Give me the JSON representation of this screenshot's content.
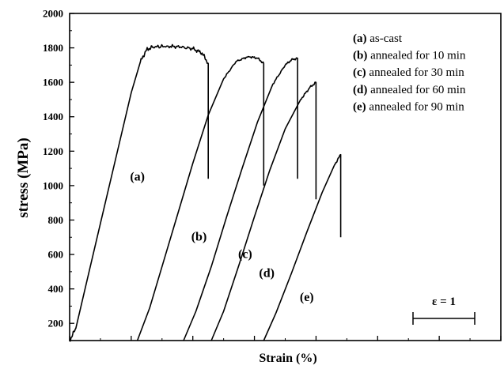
{
  "chart_data": {
    "type": "line",
    "xlabel": "Strain (%)",
    "ylabel": "stress (MPa)",
    "ylim": [
      100,
      2000
    ],
    "xlim": [
      0,
      14
    ],
    "y_ticks": [
      200,
      400,
      600,
      800,
      1000,
      1200,
      1400,
      1600,
      1800,
      2000
    ],
    "x_tick_labels_shown": false,
    "grid": false,
    "legend_position": "top-right",
    "legend": [
      {
        "key": "(a)",
        "text": "as-cast"
      },
      {
        "key": "(b)",
        "text": "annealed for 10 min"
      },
      {
        "key": "(c)",
        "text": "annealed for 30 min"
      },
      {
        "key": "(d)",
        "text": "annealed for 60 min"
      },
      {
        "key": "(e)",
        "text": "annealed for 90 min"
      }
    ],
    "scale_bar": {
      "label": "ε = 1",
      "strain_length": 1
    },
    "series": [
      {
        "name": "(a)",
        "points": [
          [
            0,
            100
          ],
          [
            0.2,
            170
          ],
          [
            0.5,
            400
          ],
          [
            1.0,
            780
          ],
          [
            1.5,
            1160
          ],
          [
            2.0,
            1540
          ],
          [
            2.3,
            1720
          ],
          [
            2.5,
            1790
          ],
          [
            2.7,
            1805
          ],
          [
            3.2,
            1810
          ],
          [
            3.6,
            1805
          ],
          [
            4.0,
            1795
          ],
          [
            4.3,
            1770
          ],
          [
            4.5,
            1710
          ],
          [
            4.5,
            1040
          ]
        ]
      },
      {
        "name": "(b)",
        "points": [
          [
            2.2,
            100
          ],
          [
            2.6,
            290
          ],
          [
            3.0,
            530
          ],
          [
            3.5,
            830
          ],
          [
            4.0,
            1130
          ],
          [
            4.5,
            1410
          ],
          [
            5.0,
            1620
          ],
          [
            5.4,
            1720
          ],
          [
            5.8,
            1750
          ],
          [
            6.1,
            1740
          ],
          [
            6.3,
            1710
          ],
          [
            6.3,
            1000
          ]
        ]
      },
      {
        "name": "(c)",
        "points": [
          [
            3.7,
            100
          ],
          [
            4.1,
            270
          ],
          [
            4.6,
            530
          ],
          [
            5.1,
            820
          ],
          [
            5.6,
            1100
          ],
          [
            6.1,
            1370
          ],
          [
            6.6,
            1590
          ],
          [
            7.0,
            1700
          ],
          [
            7.2,
            1730
          ],
          [
            7.4,
            1740
          ],
          [
            7.4,
            1040
          ]
        ]
      },
      {
        "name": "(d)",
        "points": [
          [
            4.6,
            100
          ],
          [
            5.0,
            270
          ],
          [
            5.5,
            540
          ],
          [
            6.0,
            820
          ],
          [
            6.5,
            1090
          ],
          [
            7.0,
            1330
          ],
          [
            7.5,
            1500
          ],
          [
            7.8,
            1570
          ],
          [
            8.0,
            1600
          ],
          [
            8.0,
            920
          ]
        ]
      },
      {
        "name": "(e)",
        "points": [
          [
            6.3,
            100
          ],
          [
            6.7,
            260
          ],
          [
            7.2,
            490
          ],
          [
            7.7,
            730
          ],
          [
            8.2,
            960
          ],
          [
            8.6,
            1120
          ],
          [
            8.8,
            1180
          ],
          [
            8.8,
            700
          ]
        ]
      }
    ],
    "curve_labels": [
      {
        "text": "(a)",
        "x": 2.2,
        "y": 1030
      },
      {
        "text": "(b)",
        "x": 4.2,
        "y": 680
      },
      {
        "text": "(c)",
        "x": 5.7,
        "y": 580
      },
      {
        "text": "(d)",
        "x": 6.4,
        "y": 470
      },
      {
        "text": "(e)",
        "x": 7.7,
        "y": 330
      }
    ]
  }
}
